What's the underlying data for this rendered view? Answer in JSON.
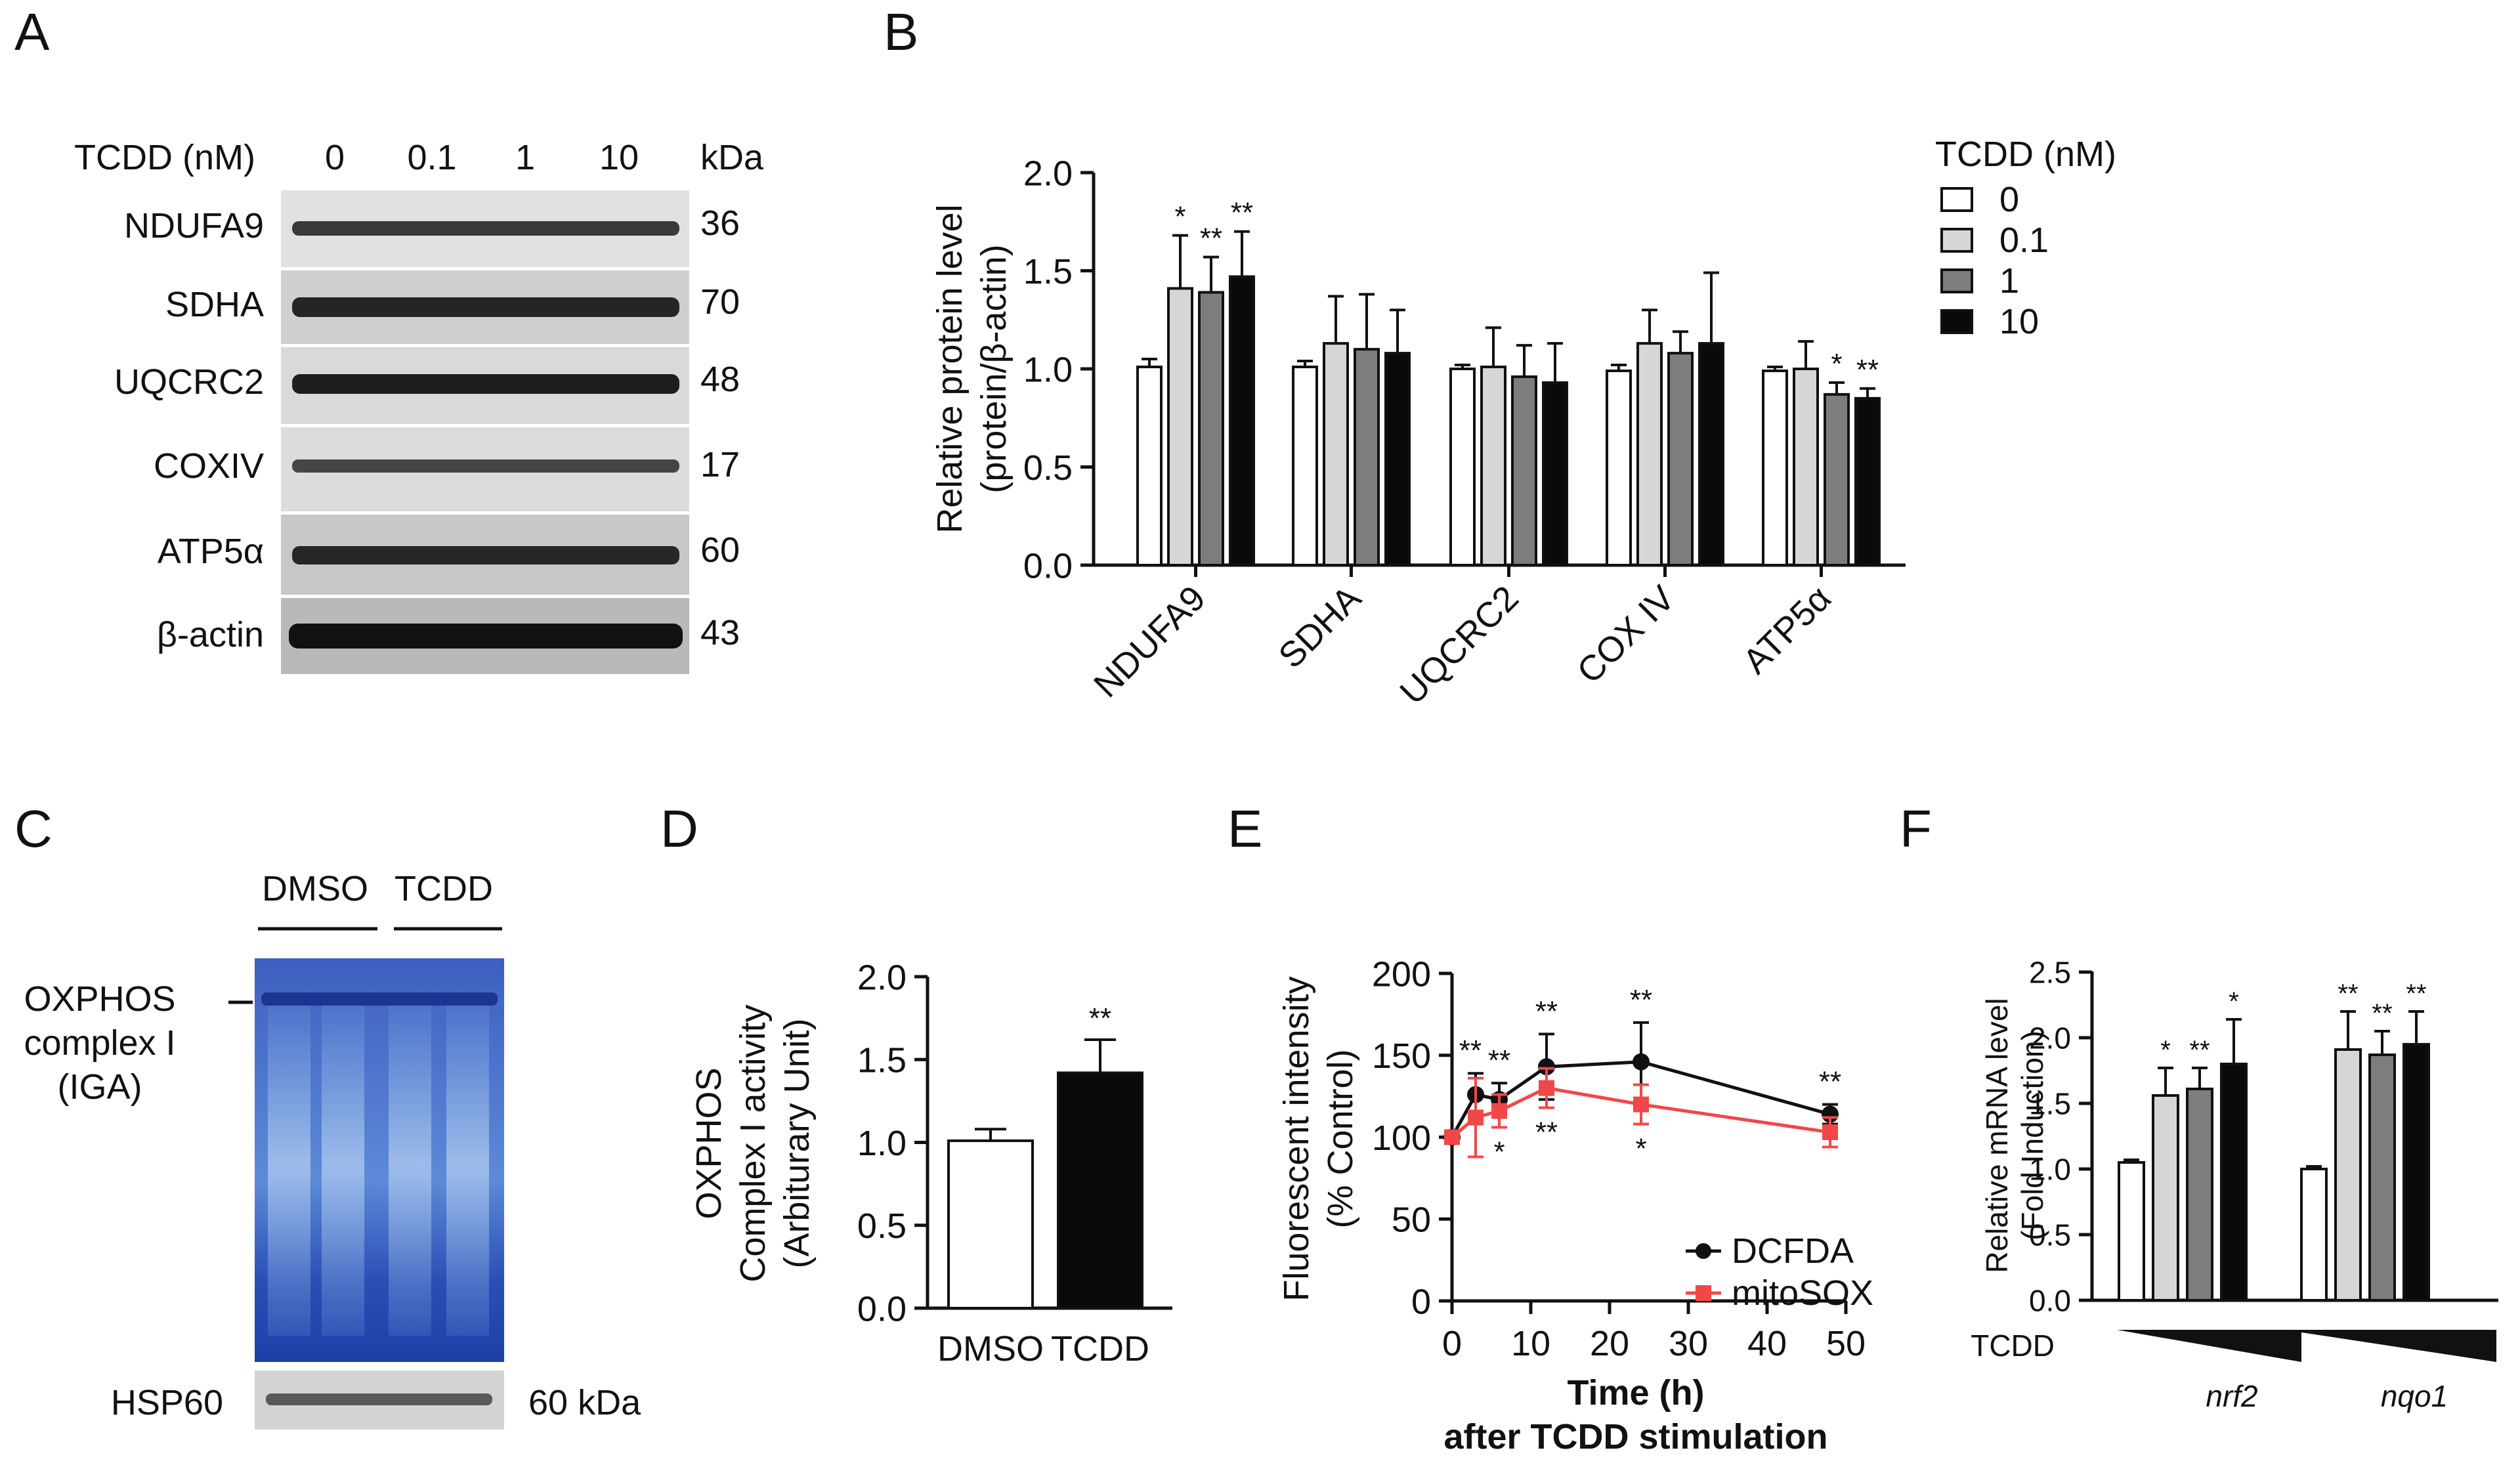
{
  "colors": {
    "ink": "#111111",
    "bar_0": "#ffffff",
    "bar_01": "#d6d6d6",
    "bar_1": "#7d7d7d",
    "bar_10": "#0a0a0a",
    "dcfda": "#111111",
    "mitosox": "#f04848",
    "gel_blue": "#2f57b5",
    "blot_bg": "#d8d8d8",
    "band": "#2a2a2a"
  },
  "panel_labels": [
    "A",
    "B",
    "C",
    "D",
    "E",
    "F"
  ],
  "panel_a": {
    "header": "TCDD (nM)",
    "lanes": [
      "0",
      "0.1",
      "1",
      "10"
    ],
    "kda_label": "kDa",
    "rows": [
      {
        "name": "NDUFA9",
        "kda": "36"
      },
      {
        "name": "SDHA",
        "kda": "70"
      },
      {
        "name": "UQCRC2",
        "kda": "48"
      },
      {
        "name": "COXIV",
        "kda": "17"
      },
      {
        "name": "ATP5α",
        "kda": "60"
      },
      {
        "name": "β-actin",
        "kda": "43"
      }
    ]
  },
  "panel_c": {
    "groups": [
      "DMSO",
      "TCDD"
    ],
    "band_label": [
      "OXPHOS",
      "complex I",
      "(IGA)"
    ],
    "loading": {
      "name": "HSP60",
      "kda": "60 kDa"
    }
  },
  "chart_data": [
    {
      "panel": "B",
      "type": "bar",
      "ylabel": [
        "Relative protein level",
        "(protein/β-actin)"
      ],
      "ylim": [
        0,
        2.0
      ],
      "yticks": [
        "0.0",
        "0.5",
        "1.0",
        "1.5",
        "2.0"
      ],
      "categories": [
        "NDUFA9",
        "SDHA",
        "UQCRC2",
        "COX IV",
        "ATP5α"
      ],
      "legend_title": "TCDD (nM)",
      "series": [
        {
          "name": "0",
          "values": [
            1.01,
            1.01,
            1.0,
            0.99,
            0.99
          ],
          "errors": [
            0.04,
            0.03,
            0.02,
            0.03,
            0.02
          ],
          "sig": [
            "",
            "",
            "",
            "",
            ""
          ]
        },
        {
          "name": "0.1",
          "values": [
            1.41,
            1.13,
            1.01,
            1.13,
            1.0
          ],
          "errors": [
            0.27,
            0.24,
            0.2,
            0.17,
            0.14
          ],
          "sig": [
            "*",
            "",
            "",
            "",
            ""
          ]
        },
        {
          "name": "1",
          "values": [
            1.39,
            1.1,
            0.96,
            1.08,
            0.87
          ],
          "errors": [
            0.18,
            0.28,
            0.16,
            0.11,
            0.06
          ],
          "sig": [
            "**",
            "",
            "",
            "",
            "*"
          ]
        },
        {
          "name": "10",
          "values": [
            1.47,
            1.08,
            0.93,
            1.13,
            0.85
          ],
          "errors": [
            0.23,
            0.22,
            0.2,
            0.36,
            0.05
          ],
          "sig": [
            "**",
            "",
            "",
            "",
            "**"
          ]
        }
      ]
    },
    {
      "panel": "D",
      "type": "bar",
      "ylabel": [
        "OXPHOS",
        "Complex I activity",
        "(Arbiturary Unit)"
      ],
      "ylim": [
        0,
        2.0
      ],
      "yticks": [
        "0.0",
        "0.5",
        "1.0",
        "1.5",
        "2.0"
      ],
      "categories": [
        "DMSO",
        "TCDD"
      ],
      "values": [
        1.01,
        1.42
      ],
      "errors": [
        0.07,
        0.2
      ],
      "sig": [
        "",
        "**"
      ]
    },
    {
      "panel": "E",
      "type": "line",
      "ylabel": [
        "Fluorescent intensity",
        "(% Control)"
      ],
      "xlabel": [
        "Time (h)",
        "after TCDD stimulation"
      ],
      "xlim": [
        0,
        50
      ],
      "ylim": [
        0,
        200
      ],
      "xticks": [
        "0",
        "10",
        "20",
        "30",
        "40",
        "50"
      ],
      "yticks": [
        "0",
        "50",
        "100",
        "150",
        "200"
      ],
      "series": [
        {
          "name": "DCFDA",
          "x": [
            0,
            3,
            6,
            12,
            24,
            48
          ],
          "y": [
            100,
            126,
            123,
            143,
            146,
            114
          ],
          "errors": [
            0,
            13,
            10,
            20,
            24,
            6
          ],
          "sig": [
            "",
            "**",
            "**",
            "**",
            "**",
            "**"
          ]
        },
        {
          "name": "mitoSOX",
          "x": [
            0,
            3,
            6,
            12,
            24,
            48
          ],
          "y": [
            100,
            112,
            116,
            130,
            120,
            103
          ],
          "errors": [
            0,
            24,
            10,
            12,
            12,
            9
          ],
          "sig": [
            "",
            "",
            "*",
            "**",
            "*",
            ""
          ]
        }
      ]
    },
    {
      "panel": "F",
      "type": "bar",
      "ylabel": [
        "Relative mRNA level",
        "(Fold Induction)"
      ],
      "ylim": [
        0,
        2.5
      ],
      "yticks": [
        "0.0",
        "0.5",
        "1.0",
        "1.5",
        "2.0",
        "2.5"
      ],
      "categories": [
        "nrf2",
        "nqo1"
      ],
      "treatment_label": "TCDD",
      "series": [
        {
          "name": "0",
          "values": [
            1.05,
            1.0
          ],
          "errors": [
            0.02,
            0.02
          ],
          "sig": [
            "",
            ""
          ]
        },
        {
          "name": "0.1",
          "values": [
            1.56,
            1.91
          ],
          "errors": [
            0.21,
            0.29
          ],
          "sig": [
            "*",
            "**"
          ]
        },
        {
          "name": "1",
          "values": [
            1.61,
            1.87
          ],
          "errors": [
            0.16,
            0.18
          ],
          "sig": [
            "**",
            "**"
          ]
        },
        {
          "name": "10",
          "values": [
            1.8,
            1.95
          ],
          "errors": [
            0.34,
            0.25
          ],
          "sig": [
            "*",
            "**"
          ]
        }
      ]
    }
  ]
}
